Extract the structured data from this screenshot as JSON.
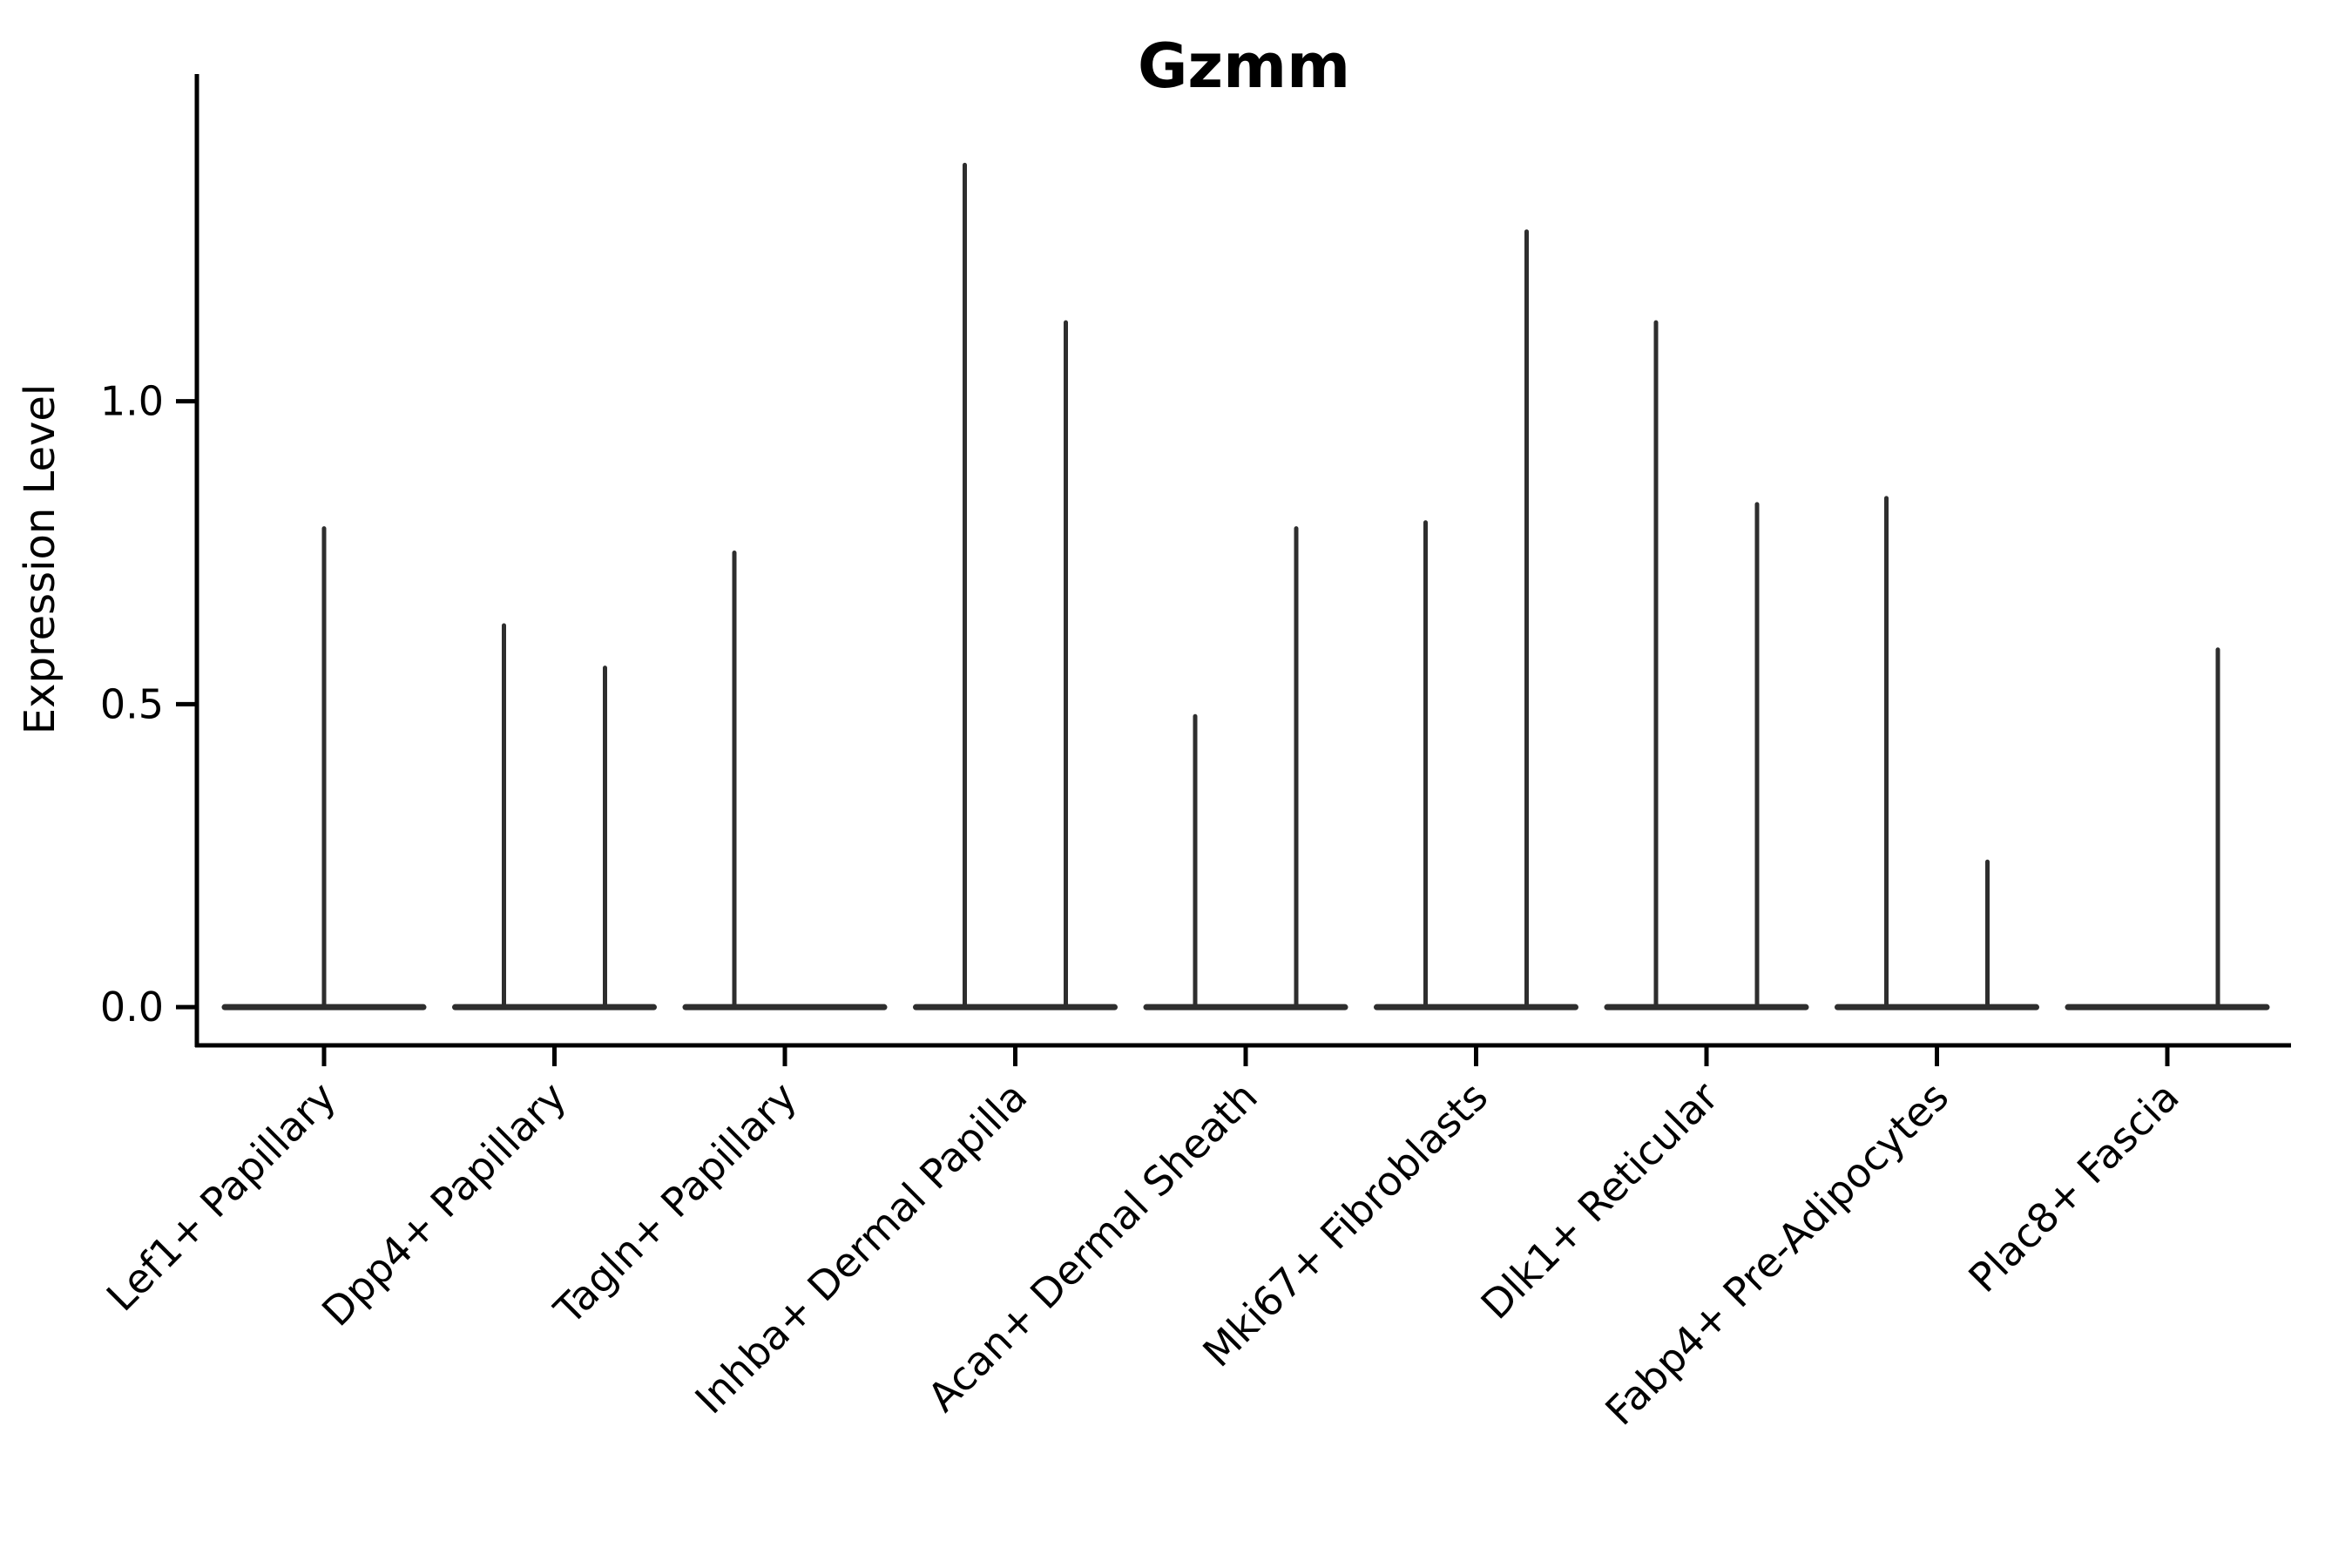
{
  "chart_data": {
    "type": "violin",
    "title": "Gzmm",
    "ylabel": "Expression Level",
    "xlabel": "",
    "yticks": [
      0,
      0.5,
      1
    ],
    "ytick_format_decimals": 1,
    "ylim": [
      -0.063,
      1.54
    ],
    "grid": false,
    "legend": false,
    "background": "#ffffff",
    "axis_color": "#000000",
    "violin_color": "#2e2e2e",
    "categories": [
      "Lef1+ Papillary",
      "Dpp4+ Papillary",
      "Tagln+ Papillary",
      "Inhba+ Dermal Papilla",
      "Acan+ Dermal Sheath",
      "Mki67+ Fibroblasts",
      "Dlk1+ Reticular",
      "Fabp4+ Pre-Adipocytes",
      "Plac8+ Fascia"
    ],
    "violins": [
      {
        "category": "Lef1+ Papillary",
        "spikes": [
          {
            "position": "center",
            "max": 0.79
          }
        ]
      },
      {
        "category": "Dpp4+ Papillary",
        "spikes": [
          {
            "position": "left",
            "max": 0.63
          },
          {
            "position": "right",
            "max": 0.56
          }
        ]
      },
      {
        "category": "Tagln+ Papillary",
        "spikes": [
          {
            "position": "left",
            "max": 0.75
          },
          {
            "position": "right",
            "max": 0
          }
        ]
      },
      {
        "category": "Inhba+ Dermal Papilla",
        "spikes": [
          {
            "position": "left",
            "max": 1.39
          },
          {
            "position": "right",
            "max": 1.13
          }
        ]
      },
      {
        "category": "Acan+ Dermal Sheath",
        "spikes": [
          {
            "position": "left",
            "max": 0.48
          },
          {
            "position": "right",
            "max": 0.79
          }
        ]
      },
      {
        "category": "Mki67+ Fibroblasts",
        "spikes": [
          {
            "position": "left",
            "max": 0.8
          },
          {
            "position": "right",
            "max": 1.28
          }
        ]
      },
      {
        "category": "Dlk1+ Reticular",
        "spikes": [
          {
            "position": "left",
            "max": 1.13
          },
          {
            "position": "right",
            "max": 0.83
          }
        ]
      },
      {
        "category": "Fabp4+ Pre-Adipocytes",
        "spikes": [
          {
            "position": "left",
            "max": 0.84
          },
          {
            "position": "right",
            "max": 0.24
          }
        ]
      },
      {
        "category": "Plac8+ Fascia",
        "spikes": [
          {
            "position": "left",
            "max": 0
          },
          {
            "position": "right",
            "max": 0.59
          }
        ]
      }
    ],
    "distribution_note": "All distributions are concentrated at 0 (flat wide base); 'max' is the top of the thin density spike."
  }
}
